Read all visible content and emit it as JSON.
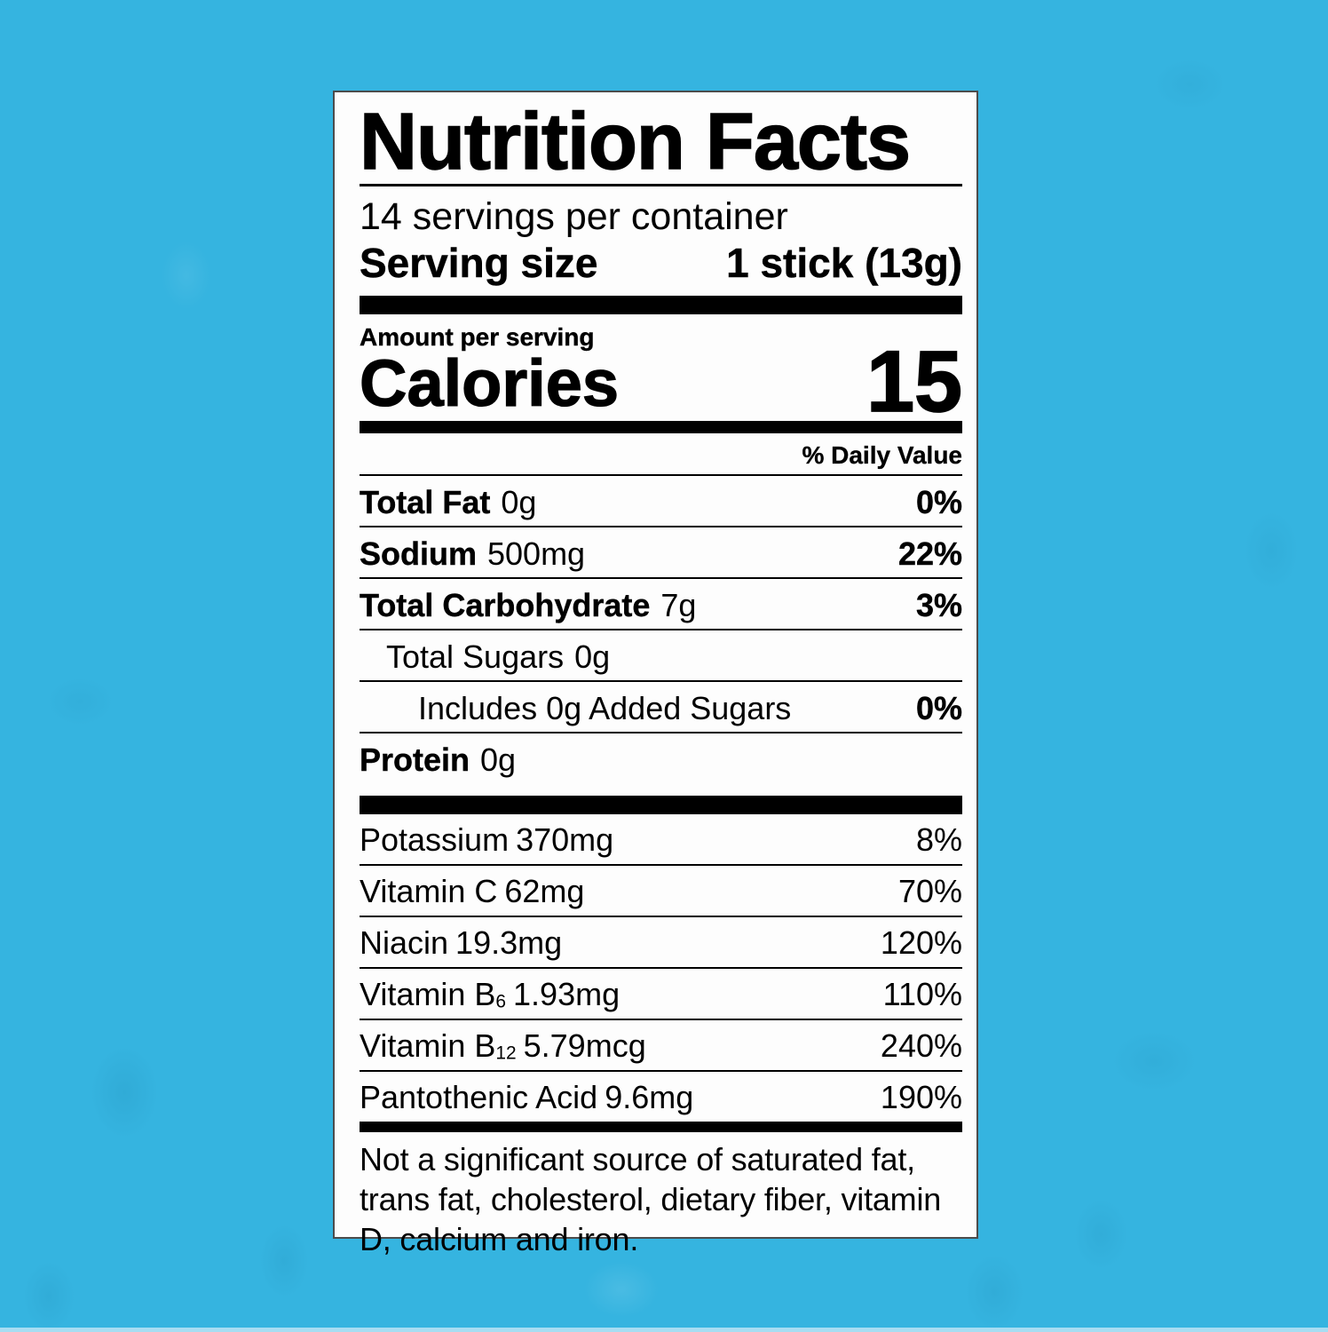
{
  "colors": {
    "background": "#35b4e0",
    "bottom_strip": "#a7ddf2",
    "label_background": "#fdfdfd",
    "label_border": "#4c4c4c",
    "text": "#000000"
  },
  "label": {
    "title": "Nutrition Facts",
    "servings_per_container": "14 servings per container",
    "serving_size_label": "Serving size",
    "serving_size_value": "1 stick (13g)",
    "amount_per_serving": "Amount per serving",
    "calories_label": "Calories",
    "calories_value": "15",
    "daily_value_header": "% Daily Value",
    "macro_rows": [
      {
        "name": "Total Fat",
        "amount": "0g",
        "pct": "0%",
        "indent": 0,
        "bold_name": true,
        "bold_pct": true
      },
      {
        "name": "Sodium",
        "amount": "500mg",
        "pct": "22%",
        "indent": 0,
        "bold_name": true,
        "bold_pct": true
      },
      {
        "name": "Total Carbohydrate",
        "amount": "7g",
        "pct": "3%",
        "indent": 0,
        "bold_name": true,
        "bold_pct": true
      },
      {
        "name": "Total Sugars",
        "amount": "0g",
        "pct": "",
        "indent": 1,
        "bold_name": false,
        "bold_pct": false
      },
      {
        "name": "Includes 0g Added Sugars",
        "amount": "",
        "pct": "0%",
        "indent": 2,
        "bold_name": false,
        "bold_pct": true
      },
      {
        "name": "Protein",
        "amount": "0g",
        "pct": "",
        "indent": 0,
        "bold_name": true,
        "bold_pct": false
      }
    ],
    "vitamin_rows": [
      {
        "name": "Potassium",
        "amount": "370mg",
        "pct": "8%"
      },
      {
        "name": "Vitamin C",
        "amount": "62mg",
        "pct": "70%"
      },
      {
        "name": "Niacin",
        "amount": "19.3mg",
        "pct": "120%"
      },
      {
        "name": "Vitamin B",
        "sub": "6",
        "amount": "1.93mg",
        "pct": "110%"
      },
      {
        "name": "Vitamin B",
        "sub": "12",
        "amount": "5.79mcg",
        "pct": "240%"
      },
      {
        "name": "Pantothenic Acid",
        "amount": "9.6mg",
        "pct": "190%"
      }
    ],
    "footnote": "Not a significant source of saturated fat, trans fat, cholesterol, dietary fiber, vitamin D, calcium and iron."
  }
}
